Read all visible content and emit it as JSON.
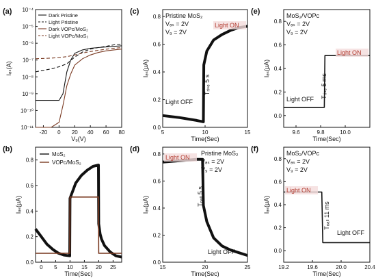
{
  "colors": {
    "black": "#111111",
    "brown": "#7a3a22",
    "red_text": "#b03a2e"
  },
  "chart_data": [
    {
      "id": "a",
      "type": "line",
      "panel_label": "(a)",
      "log_y": true,
      "xlim": [
        -30,
        80
      ],
      "ylim_exp": [
        -11,
        -4
      ],
      "xticks": [
        "-20",
        "0",
        "20",
        "40",
        "60",
        "80"
      ],
      "yticks": [
        "10⁻¹¹",
        "10⁻¹⁰",
        "10⁻⁹",
        "10⁻⁸",
        "10⁻⁷",
        "10⁻⁶",
        "10⁻⁵",
        "10⁻⁴"
      ],
      "xlabel": "V₉(V)",
      "ylabel": "Iₔₛ(A)",
      "legend": [
        "Dark Pristine",
        "Light Pristine",
        "Dark VOPc/MoS₂",
        "Light VOPc/MoS₂"
      ],
      "series": [
        {
          "name": "Dark Pristine",
          "x": [
            -30,
            -10,
            0,
            5,
            10,
            15,
            20,
            30,
            40,
            50,
            60,
            70,
            80
          ],
          "y": [
            4e-10,
            4e-10,
            4e-10,
            1e-09,
            2e-08,
            1e-07,
            2.5e-07,
            4e-07,
            5e-07,
            5.5e-07,
            6e-07,
            6.5e-07,
            7e-07
          ]
        },
        {
          "name": "Light Pristine",
          "x": [
            -30,
            -10,
            0,
            10,
            20,
            30,
            40,
            50,
            60,
            70,
            80
          ],
          "y": [
            2e-08,
            3e-08,
            4e-08,
            6e-08,
            1.5e-07,
            3e-07,
            4.5e-07,
            5.5e-07,
            6.5e-07,
            8e-07,
            9e-07
          ]
        },
        {
          "name": "Dark VOPc/MoS₂",
          "x": [
            -30,
            -20,
            -10,
            0,
            5,
            10,
            15,
            20,
            30,
            40,
            50,
            60,
            70,
            80
          ],
          "y": [
            1e-11,
            1e-11,
            1e-11,
            2e-11,
            2e-10,
            3e-09,
            1.5e-08,
            5e-08,
            1.2e-07,
            2e-07,
            2.8e-07,
            3.5e-07,
            4e-07,
            4.5e-07
          ]
        },
        {
          "name": "Light VOPc/MoS₂",
          "x": [
            -30,
            -10,
            0,
            10,
            20,
            30,
            40,
            50,
            60,
            70,
            80
          ],
          "y": [
            1.2e-07,
            1.3e-07,
            1.4e-07,
            1.6e-07,
            2e-07,
            2.6e-07,
            3.2e-07,
            3.8e-07,
            4.4e-07,
            5e-07,
            5.5e-07
          ]
        }
      ]
    },
    {
      "id": "b",
      "type": "line",
      "panel_label": "(b)",
      "xlim": [
        -2,
        28
      ],
      "ylim": [
        0,
        0.9
      ],
      "xticks": [
        "0",
        "5",
        "10",
        "15",
        "20",
        "25"
      ],
      "yticks": [
        "0.0",
        "0.2",
        "0.4",
        "0.6",
        "0.8"
      ],
      "xlabel": "Time(Sec)",
      "ylabel": "Iₔₛ(μA)",
      "legend": [
        "MoS₂",
        "VOPc/MoS₂"
      ],
      "series": [
        {
          "name": "MoS₂",
          "x": [
            -2,
            0,
            2,
            4,
            6,
            8,
            9.9,
            10,
            12,
            14,
            16,
            18,
            19.9,
            20,
            20.5,
            21,
            22,
            24,
            26,
            28
          ],
          "y": [
            0.26,
            0.2,
            0.14,
            0.1,
            0.07,
            0.055,
            0.05,
            0.5,
            0.62,
            0.68,
            0.72,
            0.75,
            0.76,
            0.3,
            0.22,
            0.18,
            0.13,
            0.08,
            0.05,
            0.04
          ]
        },
        {
          "name": "VOPc/MoS₂",
          "x": [
            -2,
            9.9,
            10,
            19.9,
            20,
            28
          ],
          "y": [
            0.07,
            0.07,
            0.51,
            0.51,
            0.07,
            0.07
          ]
        }
      ]
    },
    {
      "id": "c",
      "type": "line",
      "panel_label": "(c)",
      "xlim": [
        5,
        15
      ],
      "ylim": [
        0,
        0.85
      ],
      "xticks": [
        "5",
        "10",
        "15"
      ],
      "yticks": [
        "0.0",
        "0.2",
        "0.4",
        "0.6",
        "0.8"
      ],
      "xlabel": "Time(Sec)",
      "ylabel": "Iₔₛ(μA)",
      "annotations": {
        "title": "Pristine MoS₂",
        "vds": "Vₔₛ = 2V",
        "vg": "V₉ = 2V",
        "on": "Light ON",
        "off": "Light OFF",
        "t": "Tᵣᵢₛₑ 5 s"
      },
      "series": [
        {
          "name": "",
          "x": [
            5,
            7,
            9,
            9.8,
            9.85,
            10.2,
            11,
            12,
            13,
            14,
            15
          ],
          "y": [
            0.085,
            0.07,
            0.05,
            0.04,
            0.45,
            0.55,
            0.63,
            0.67,
            0.7,
            0.72,
            0.73
          ]
        }
      ]
    },
    {
      "id": "d",
      "type": "line",
      "panel_label": "(d)",
      "xlim": [
        15,
        25
      ],
      "ylim": [
        0,
        0.85
      ],
      "xticks": [
        "15",
        "20",
        "25"
      ],
      "yticks": [
        "0.0",
        "0.2",
        "0.4",
        "0.6",
        "0.8"
      ],
      "xlabel": "Time(Sec)",
      "ylabel": "Iₔₛ(μA)",
      "annotations": {
        "title": "Pristine MoS₂",
        "vds": "Vₔₛ = 2V",
        "vg": "V₉ = 2V",
        "on": "Light ON",
        "off": "Light OFF",
        "t": "Tₒₐₗₗ 5 s"
      },
      "series": [
        {
          "name": "",
          "x": [
            15,
            17,
            19,
            19.7,
            19.8,
            20.2,
            21,
            22,
            23,
            24,
            25
          ],
          "y": [
            0.74,
            0.75,
            0.76,
            0.76,
            0.42,
            0.3,
            0.18,
            0.12,
            0.09,
            0.07,
            0.05
          ]
        }
      ]
    },
    {
      "id": "e",
      "type": "line",
      "panel_label": "(e)",
      "xlim": [
        9.5,
        10.2
      ],
      "ylim": [
        -0.1,
        0.9
      ],
      "xticks": [
        "9.6",
        "9.8",
        "10.0"
      ],
      "yticks": [
        "0.0",
        "0.2",
        "0.4",
        "0.6",
        "0.8"
      ],
      "xlabel": "Time(Sec)",
      "ylabel": "Iₔₛ(μA)",
      "annotations": {
        "title": "MoS₂/VOPc",
        "vds": "Vₔₛ = 2V",
        "vg": "V₉ = 2V",
        "on": "Light ON",
        "off": "Light OFF",
        "t": "Tᵣᵢₛₑ 5 ms"
      },
      "series": [
        {
          "name": "",
          "x": [
            9.5,
            9.83,
            9.835,
            10.2
          ],
          "y": [
            0.07,
            0.07,
            0.51,
            0.51
          ]
        }
      ]
    },
    {
      "id": "f",
      "type": "line",
      "panel_label": "(f)",
      "xlim": [
        19.2,
        20.4
      ],
      "ylim": [
        -0.1,
        0.9
      ],
      "xticks": [
        "19.2",
        "19.6",
        "20.0",
        "20.4"
      ],
      "yticks": [
        "0.0",
        "0.2",
        "0.4",
        "0.6",
        "0.8"
      ],
      "xlabel": "Time(Sec)",
      "ylabel": "Iₔₛ(μA)",
      "annotations": {
        "title": "MoS₂/VOPc",
        "vds": "Vₔₛ = 2V",
        "vg": "V₉ = 2V",
        "on": "Light ON",
        "off": "Light OFF",
        "t": "Tₒₐₗₗ 11 ms"
      },
      "series": [
        {
          "name": "",
          "x": [
            19.2,
            19.73,
            19.745,
            20.4
          ],
          "y": [
            0.51,
            0.51,
            0.07,
            0.07
          ]
        }
      ]
    }
  ]
}
